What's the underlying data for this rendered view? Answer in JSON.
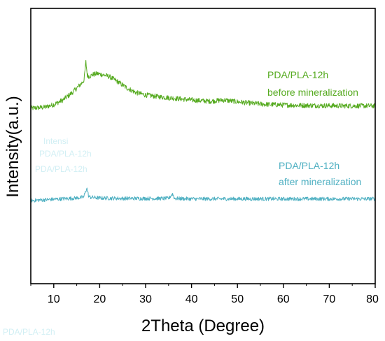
{
  "chart_data": {
    "type": "line",
    "title": "",
    "xlabel": "2Theta (Degree)",
    "ylabel": "Intensity(a.u.)",
    "xlim": [
      5,
      80
    ],
    "x_ticks": [
      10,
      20,
      30,
      40,
      50,
      60,
      70,
      80
    ],
    "y_ticks_shown": false,
    "grid": false,
    "series": [
      {
        "name": "PDA/PLA-12h before mineralization",
        "label_lines": [
          "PDA/PLA-12h",
          "before mineralization"
        ],
        "color": "#55aa1f",
        "x": [
          5,
          8,
          10,
          12,
          14,
          15,
          16,
          16.6,
          17.0,
          17.3,
          17.8,
          18.5,
          19.5,
          20.5,
          22,
          24,
          26,
          28,
          30,
          33,
          36,
          40,
          44,
          47,
          50,
          55,
          60,
          65,
          70,
          75,
          80
        ],
        "y": [
          0.78,
          1.0,
          1.6,
          2.6,
          4.2,
          5.2,
          6.2,
          7.0,
          11.0,
          8.0,
          7.8,
          8.2,
          8.4,
          8.2,
          7.8,
          6.6,
          5.2,
          4.2,
          3.7,
          3.3,
          3.0,
          2.6,
          2.3,
          2.6,
          2.2,
          1.7,
          1.5,
          1.4,
          1.35,
          1.3,
          1.3
        ]
      },
      {
        "name": "PDA/PLA-12h after mineralization",
        "label_lines": [
          "PDA/PLA-12h",
          "after mineralization"
        ],
        "color": "#4fb0c2",
        "x": [
          5,
          10,
          15,
          16.5,
          17.2,
          17.6,
          18,
          20,
          25,
          30,
          35,
          35.9,
          36.3,
          40,
          50,
          60,
          70,
          80
        ],
        "y": [
          0.0,
          0.3,
          0.6,
          0.8,
          3.0,
          1.0,
          0.8,
          0.6,
          0.5,
          0.5,
          0.5,
          1.6,
          0.5,
          0.4,
          0.4,
          0.4,
          0.4,
          0.4
        ]
      }
    ],
    "stray_fragments": [
      "Intensi",
      "PDA/PLA-12h",
      "PDA/PLA-12h",
      "PDA/PLA-12h"
    ]
  }
}
